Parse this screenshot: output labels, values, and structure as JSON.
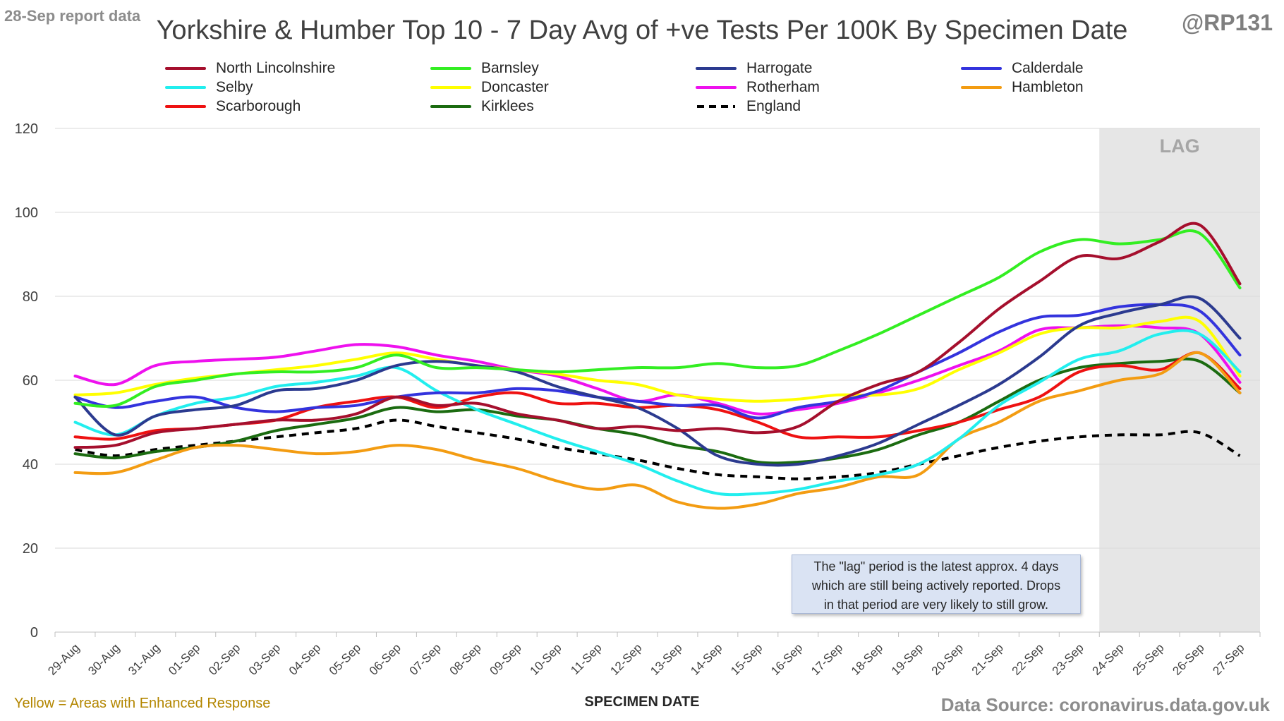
{
  "header": {
    "report_date": "28-Sep report data",
    "handle": "@RP131",
    "title": "Yorkshire & Humber Top 10 - 7 Day Avg of +ve Tests Per 100K By Specimen Date"
  },
  "footer": {
    "note": "Yellow = Areas with Enhanced Response",
    "source": "Data Source: coronavirus.data.gov.uk"
  },
  "annotation": {
    "lag_label": "LAG",
    "lag_note_lines": [
      "The \"lag\" period is the latest approx. 4 days",
      "which are still being actively reported. Drops",
      "in that period are very likely to still grow."
    ]
  },
  "chart_data": {
    "type": "line",
    "title": "Yorkshire & Humber Top 10 - 7 Day Avg of +ve Tests Per 100K By Specimen Date",
    "xlabel": "SPECIMEN DATE",
    "ylabel": "",
    "ylim": [
      0,
      120
    ],
    "yticks": [
      0,
      20,
      40,
      60,
      80,
      100,
      120
    ],
    "grid": true,
    "legend_position": "top",
    "lag_range": [
      "24-Sep",
      "27-Sep"
    ],
    "categories": [
      "29-Aug",
      "30-Aug",
      "31-Aug",
      "01-Sep",
      "02-Sep",
      "03-Sep",
      "04-Sep",
      "05-Sep",
      "06-Sep",
      "07-Sep",
      "08-Sep",
      "09-Sep",
      "10-Sep",
      "11-Sep",
      "12-Sep",
      "13-Sep",
      "14-Sep",
      "15-Sep",
      "16-Sep",
      "17-Sep",
      "18-Sep",
      "19-Sep",
      "20-Sep",
      "21-Sep",
      "22-Sep",
      "23-Sep",
      "24-Sep",
      "25-Sep",
      "26-Sep",
      "27-Sep"
    ],
    "series": [
      {
        "name": "North Lincolnshire",
        "color": "#a50f2d",
        "dashed": false,
        "values": [
          44,
          44.5,
          47.5,
          48.5,
          49.5,
          50.5,
          50.5,
          52,
          56,
          54,
          54.5,
          52,
          50.5,
          48.5,
          49,
          48,
          48.5,
          47.5,
          49,
          55,
          59,
          62,
          69,
          77,
          83.5,
          89.5,
          89,
          93,
          97,
          83
        ]
      },
      {
        "name": "Barnsley",
        "color": "#33ee22",
        "dashed": false,
        "values": [
          54.5,
          54,
          58.5,
          60,
          61.5,
          62,
          62,
          63,
          66,
          63,
          63,
          62.5,
          62,
          62.5,
          63,
          63,
          64,
          63,
          63.5,
          67,
          71,
          75.5,
          80,
          84.5,
          90.5,
          93.5,
          92.5,
          93.5,
          95,
          82
        ]
      },
      {
        "name": "Harrogate",
        "color": "#2b3a8f",
        "dashed": false,
        "values": [
          56,
          47,
          51.5,
          53,
          54,
          57.5,
          58,
          60,
          63.5,
          64.5,
          63.5,
          62,
          58.5,
          56,
          53.5,
          48.5,
          42,
          40,
          40,
          42,
          45,
          49.5,
          54,
          59,
          65.5,
          73,
          76,
          78,
          79.5,
          70
        ]
      },
      {
        "name": "Calderdale",
        "color": "#3333dd",
        "dashed": false,
        "values": [
          56,
          53.5,
          55,
          56,
          53.5,
          52.5,
          53.5,
          54,
          56,
          57,
          57,
          58,
          57.5,
          56,
          55,
          54,
          54,
          51,
          53.5,
          55,
          57.5,
          62,
          66.5,
          71.5,
          75,
          75.5,
          77.5,
          78,
          76.5,
          66
        ]
      },
      {
        "name": "Selby",
        "color": "#22eeee",
        "dashed": false,
        "values": [
          50,
          47,
          51.5,
          54.5,
          56,
          58.5,
          59.5,
          61,
          63,
          57.5,
          53,
          49.5,
          46,
          43,
          40,
          36,
          33,
          33,
          34,
          36,
          37.5,
          40,
          46,
          54,
          59.5,
          65,
          67,
          71,
          71,
          62
        ]
      },
      {
        "name": "Doncaster",
        "color": "#ffff00",
        "dashed": false,
        "values": [
          56.5,
          57,
          59,
          60.5,
          61.5,
          62.5,
          63.5,
          65,
          66.5,
          65,
          63.5,
          62.5,
          61.5,
          60,
          59,
          56.5,
          55.5,
          55,
          55.5,
          56.5,
          56.5,
          58,
          62.5,
          66.5,
          71,
          72.5,
          72.5,
          74,
          74,
          61
        ]
      },
      {
        "name": "Rotherham",
        "color": "#ee11ee",
        "dashed": false,
        "values": [
          61,
          59,
          63.5,
          64.5,
          65,
          65.5,
          67,
          68.5,
          68,
          66,
          64.5,
          62.5,
          61,
          58,
          55,
          56.5,
          54.5,
          52,
          53,
          54.5,
          57,
          60,
          63.5,
          67,
          72,
          72.5,
          73,
          72.5,
          71,
          59.5
        ]
      },
      {
        "name": "Hambleton",
        "color": "#f39c12",
        "dashed": false,
        "values": [
          38,
          38,
          41,
          44,
          44.5,
          43.5,
          42.5,
          43,
          44.5,
          43.5,
          41,
          39,
          36,
          34,
          35,
          31,
          29.5,
          30.5,
          33,
          34.5,
          37,
          37.5,
          46,
          50,
          55,
          57.5,
          60,
          61.5,
          66.5,
          57
        ]
      },
      {
        "name": "Scarborough",
        "color": "#ee1111",
        "dashed": false,
        "values": [
          46.5,
          46,
          48,
          48.5,
          49.5,
          50.5,
          53.5,
          55,
          56,
          53.5,
          56,
          57,
          54.5,
          54.5,
          53.5,
          54,
          53,
          50,
          46.5,
          46.5,
          46.5,
          48,
          50,
          53,
          56,
          62,
          63.5,
          62.5,
          66.5,
          58
        ]
      },
      {
        "name": "Kirklees",
        "color": "#1b6b10",
        "dashed": false,
        "values": [
          42.5,
          41.5,
          43,
          44,
          45.5,
          48,
          49.5,
          51,
          53.5,
          52.5,
          53,
          51.5,
          50.5,
          48.5,
          47,
          44.5,
          43,
          40.5,
          40.5,
          41.5,
          43.5,
          47,
          50,
          55,
          60,
          63,
          64,
          64.5,
          64.5,
          57
        ]
      },
      {
        "name": "England",
        "color": "#000000",
        "dashed": true,
        "values": [
          43.5,
          42,
          43.5,
          44.5,
          45.5,
          46.5,
          47.5,
          48.5,
          50.5,
          49,
          47.5,
          46,
          44,
          42.5,
          41,
          39,
          37.5,
          37,
          36.5,
          37,
          38,
          40,
          42,
          44,
          45.5,
          46.5,
          47,
          47,
          47.5,
          42
        ]
      }
    ]
  }
}
